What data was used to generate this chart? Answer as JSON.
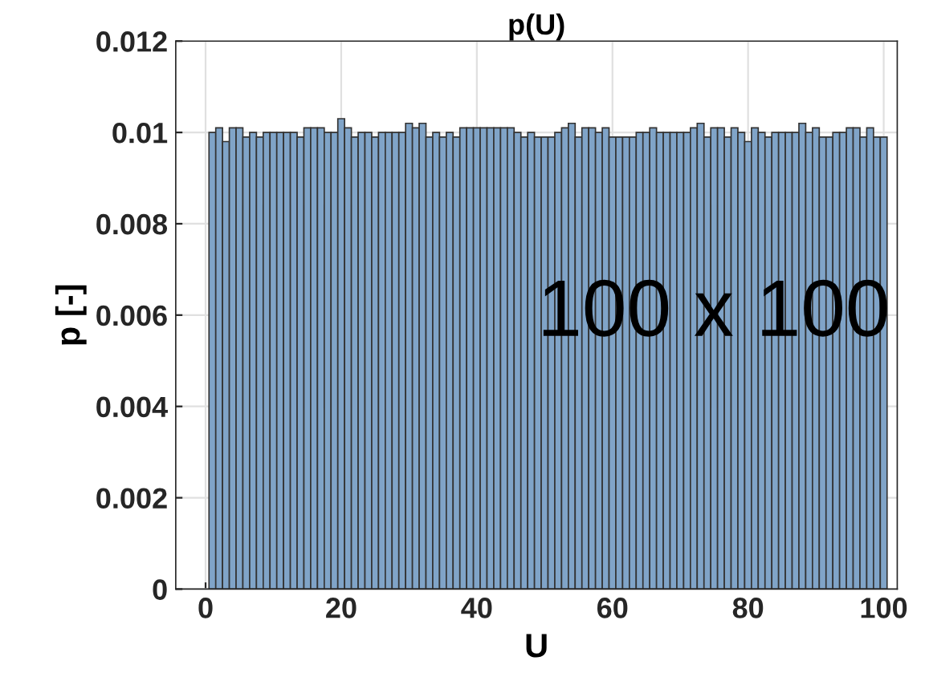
{
  "chart_data": {
    "type": "histogram",
    "title": "p(U)",
    "xlabel": "U",
    "ylabel": "p [-]",
    "bins": [
      0.5,
      1.5,
      2.5,
      3.5,
      4.5,
      5.5,
      6.5,
      7.5,
      8.5,
      9.5,
      10.5,
      11.5,
      12.5,
      13.5,
      14.5,
      15.5,
      16.5,
      17.5,
      18.5,
      19.5,
      20.5,
      21.5,
      22.5,
      23.5,
      24.5,
      25.5,
      26.5,
      27.5,
      28.5,
      29.5,
      30.5,
      31.5,
      32.5,
      33.5,
      34.5,
      35.5,
      36.5,
      37.5,
      38.5,
      39.5,
      40.5,
      41.5,
      42.5,
      43.5,
      44.5,
      45.5,
      46.5,
      47.5,
      48.5,
      49.5,
      50.5,
      51.5,
      52.5,
      53.5,
      54.5,
      55.5,
      56.5,
      57.5,
      58.5,
      59.5,
      60.5,
      61.5,
      62.5,
      63.5,
      64.5,
      65.5,
      66.5,
      67.5,
      68.5,
      69.5,
      70.5,
      71.5,
      72.5,
      73.5,
      74.5,
      75.5,
      76.5,
      77.5,
      78.5,
      79.5,
      80.5,
      81.5,
      82.5,
      83.5,
      84.5,
      85.5,
      86.5,
      87.5,
      88.5,
      89.5,
      90.5,
      91.5,
      92.5,
      93.5,
      94.5,
      95.5,
      96.5,
      97.5,
      98.5,
      99.5,
      100.5
    ],
    "values": [
      0.01,
      0.0101,
      0.0098,
      0.0101,
      0.0101,
      0.0099,
      0.01,
      0.0099,
      0.01,
      0.01,
      0.01,
      0.01,
      0.01,
      0.0099,
      0.0101,
      0.0101,
      0.0101,
      0.01,
      0.01,
      0.0103,
      0.0101,
      0.0099,
      0.01,
      0.01,
      0.0099,
      0.01,
      0.01,
      0.01,
      0.01,
      0.0102,
      0.0101,
      0.0102,
      0.0099,
      0.01,
      0.0099,
      0.01,
      0.0099,
      0.0101,
      0.0101,
      0.0101,
      0.0101,
      0.0101,
      0.0101,
      0.0101,
      0.0101,
      0.01,
      0.0099,
      0.01,
      0.0099,
      0.0099,
      0.0099,
      0.01,
      0.0101,
      0.0102,
      0.0099,
      0.0101,
      0.0101,
      0.01,
      0.0101,
      0.0099,
      0.0099,
      0.0099,
      0.0099,
      0.01,
      0.01,
      0.0101,
      0.01,
      0.01,
      0.01,
      0.01,
      0.01,
      0.0101,
      0.0102,
      0.0099,
      0.0101,
      0.0101,
      0.0099,
      0.0101,
      0.01,
      0.0098,
      0.0101,
      0.01,
      0.0099,
      0.01,
      0.01,
      0.01,
      0.01,
      0.0102,
      0.01,
      0.0101,
      0.0099,
      0.0099,
      0.01,
      0.01,
      0.0101,
      0.0101,
      0.0099,
      0.0101,
      0.0099,
      0.0099
    ],
    "color": "#80a4c8",
    "xlim": [
      -4.4,
      102
    ],
    "xticks": [
      0,
      20,
      40,
      60,
      80,
      100
    ],
    "ylim": [
      0,
      0.012
    ],
    "yticks": [
      0,
      0.002,
      0.004,
      0.006,
      0.008,
      0.01,
      0.012
    ],
    "grid": true,
    "annotations": [
      "100 x 100"
    ]
  }
}
